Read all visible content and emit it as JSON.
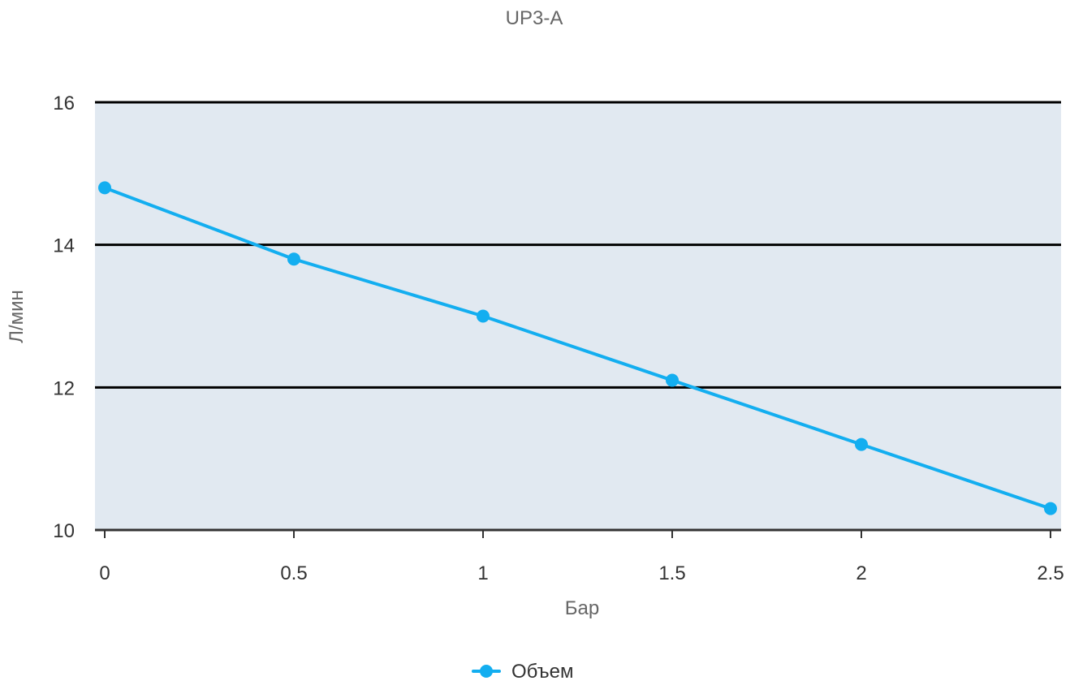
{
  "chart_data": {
    "type": "line",
    "title": "UP3-A",
    "xlabel": "Бар",
    "ylabel": "Л/мин",
    "x": [
      0,
      0.5,
      1,
      1.5,
      2,
      2.5
    ],
    "x_tick_labels": [
      "0",
      "0.5",
      "1",
      "1.5",
      "2",
      "2.5"
    ],
    "y_tick_labels": [
      "10",
      "12",
      "14",
      "16"
    ],
    "y_ticks": [
      10,
      12,
      14,
      16
    ],
    "ylim": [
      10,
      16
    ],
    "xlim": [
      0,
      2.5
    ],
    "grid": true,
    "legend_position": "bottom-center",
    "series": [
      {
        "name": "Объем",
        "values": [
          14.8,
          13.8,
          13.0,
          12.1,
          11.2,
          10.3
        ],
        "color": "#13aef0"
      }
    ],
    "colors": {
      "plot_background": "#e1e9f1",
      "gridline": "#000000",
      "axis_line": "#333333",
      "title_text": "#666666",
      "tick_text": "#333333"
    }
  }
}
